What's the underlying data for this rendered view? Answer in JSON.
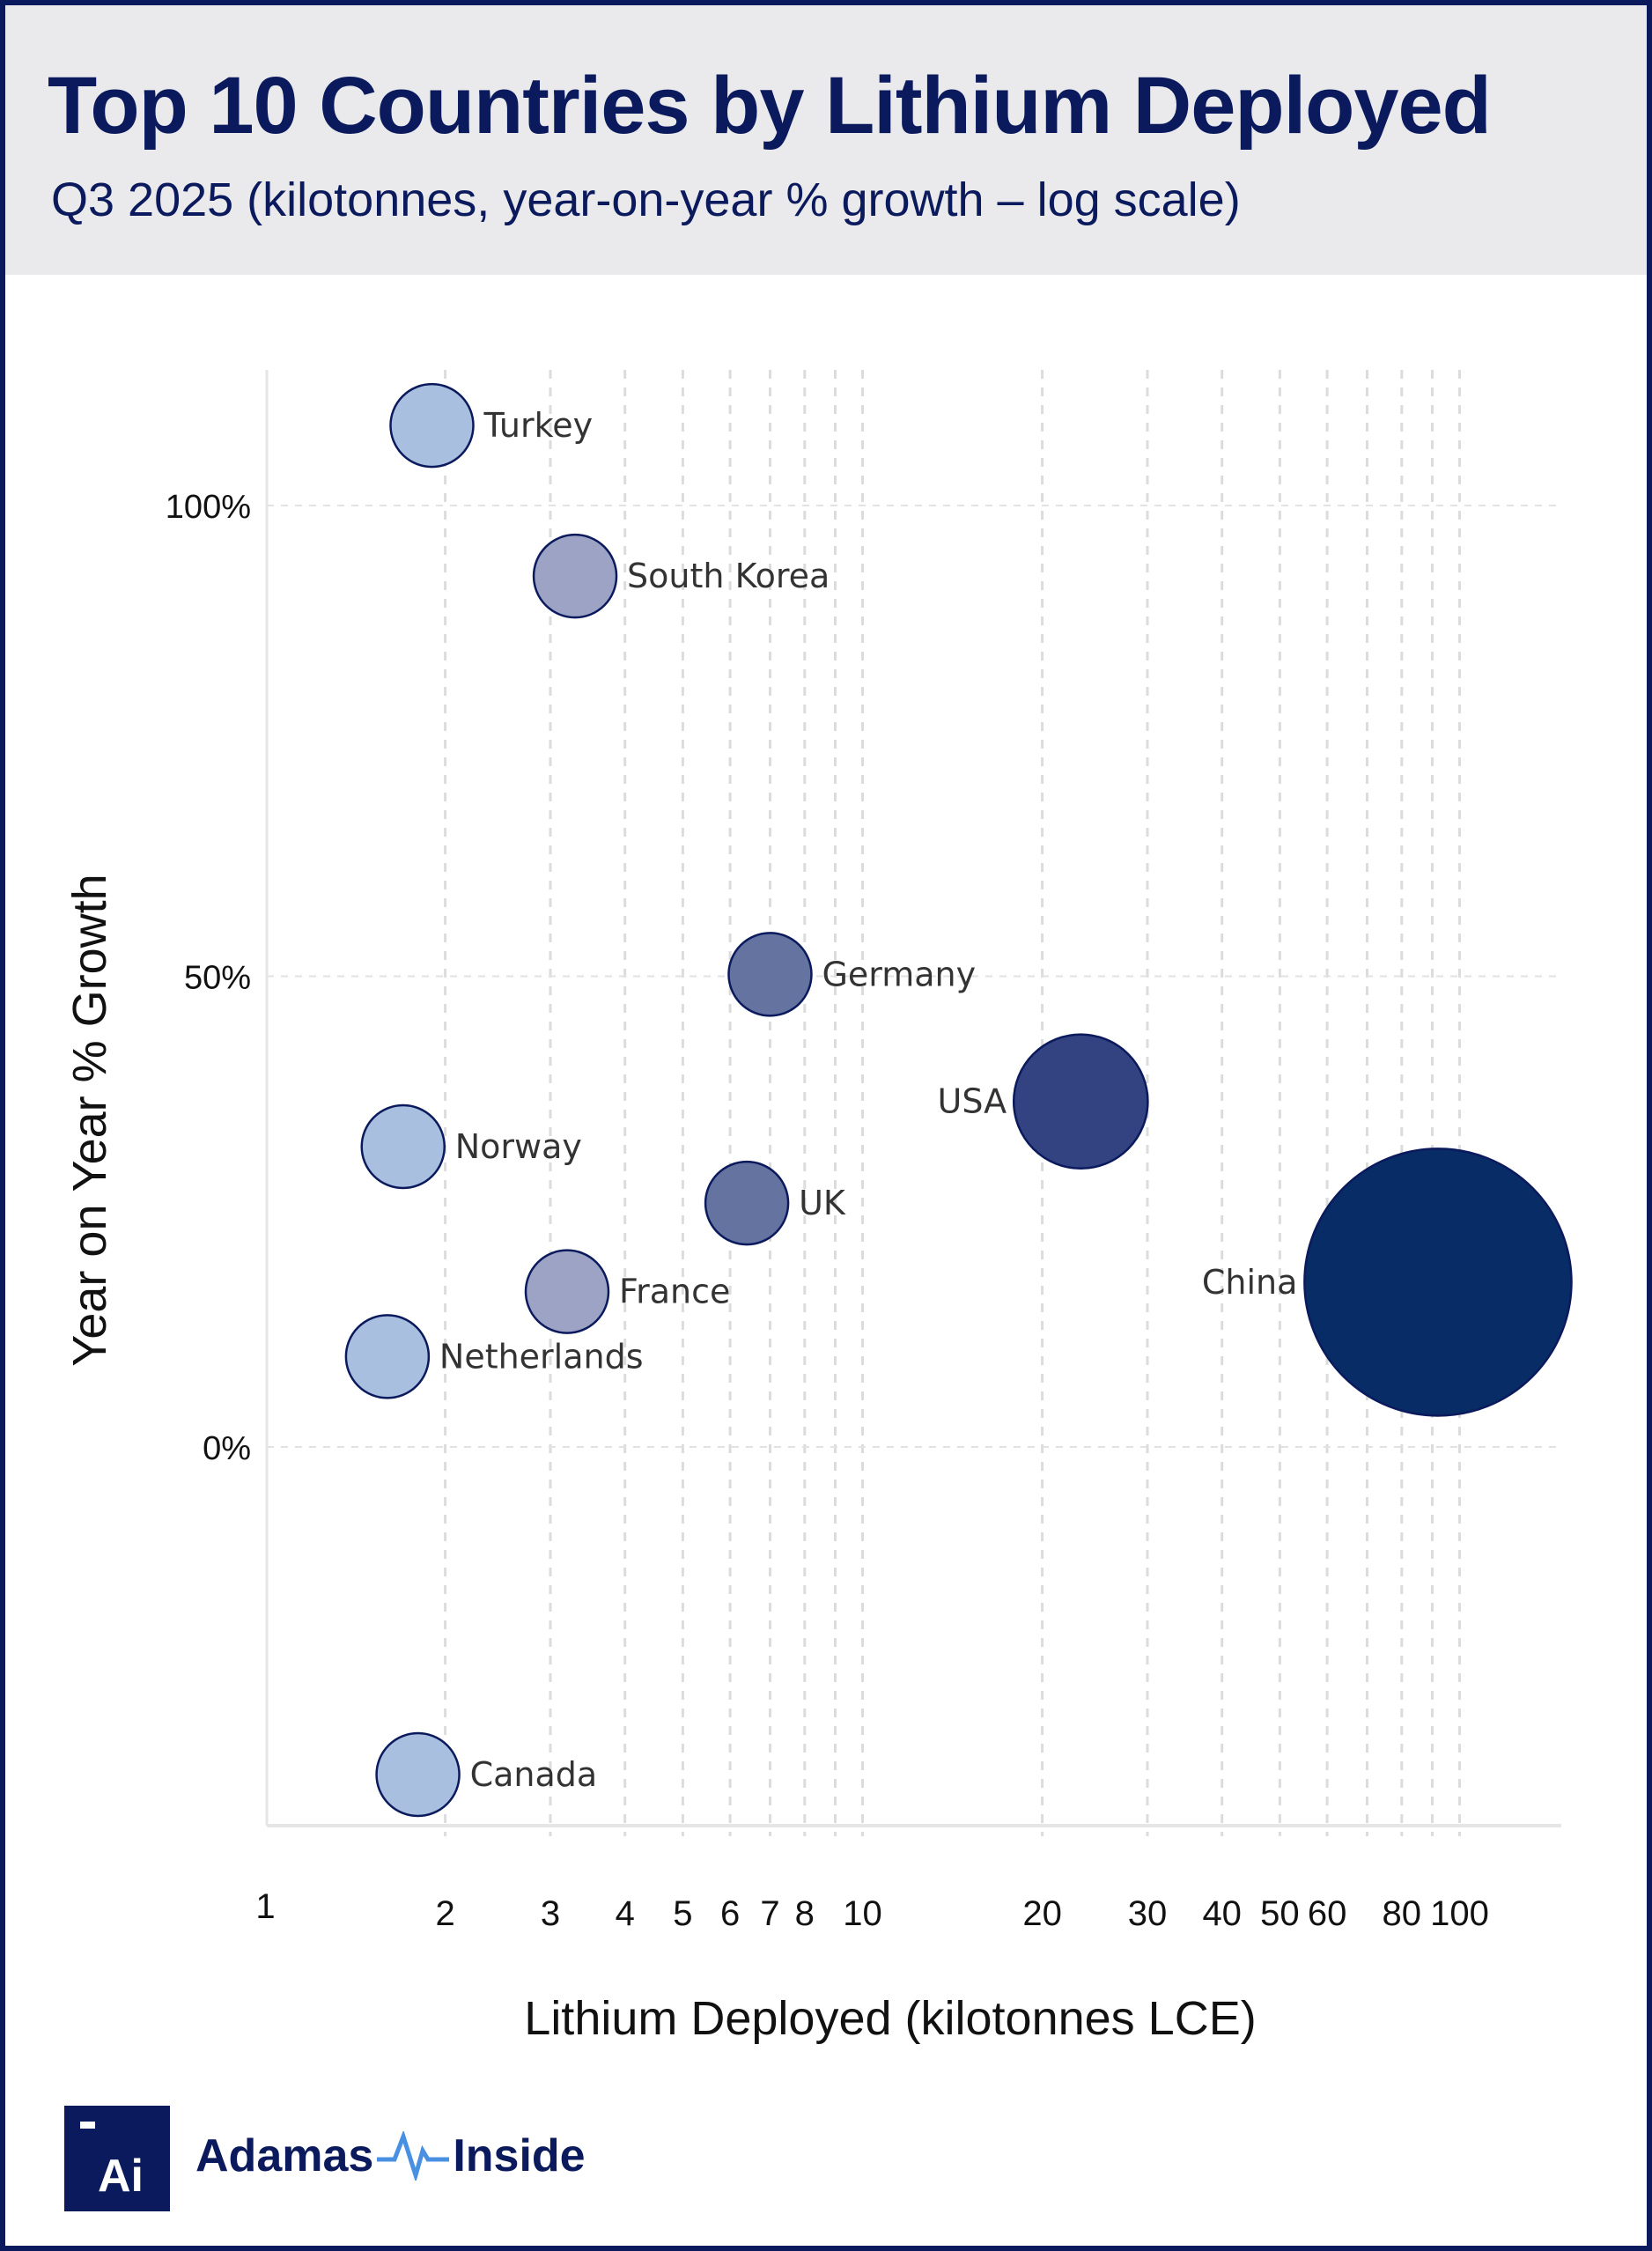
{
  "header": {
    "title": "Top 10 Countries by Lithium Deployed",
    "subtitle": "Q3 2025 (kilotonnes, year-on-year % growth – log scale)"
  },
  "chart_data": {
    "type": "scatter",
    "subtype": "bubble",
    "xlabel": "Lithium Deployed (kilotonnes LCE)",
    "ylabel": "Year on Year % Growth",
    "x_scale": "log",
    "xlim": [
      1,
      148
    ],
    "ylim": [
      -40,
      114
    ],
    "grid": true,
    "x_ticks": [
      "1",
      "2",
      "3",
      "4",
      "5",
      "6",
      "7",
      "8",
      "10",
      "20",
      "30",
      "40",
      "50",
      "60",
      "80",
      "100"
    ],
    "y_ticks": [
      "100%",
      "50%",
      "0%"
    ],
    "points": [
      {
        "name": "Turkey",
        "x": 1.9,
        "y": 108.5,
        "color": "#a8bfdf"
      },
      {
        "name": "South Korea",
        "x": 3.3,
        "y": 92.5,
        "color": "#9ca3c5"
      },
      {
        "name": "Germany",
        "x": 7.0,
        "y": 50.2,
        "color": "#6473a0"
      },
      {
        "name": "USA",
        "x": 23.2,
        "y": 36.7,
        "color": "#334381"
      },
      {
        "name": "Norway",
        "x": 1.7,
        "y": 31.9,
        "color": "#a8bfdf"
      },
      {
        "name": "UK",
        "x": 6.4,
        "y": 25.9,
        "color": "#6473a0"
      },
      {
        "name": "France",
        "x": 3.2,
        "y": 16.5,
        "color": "#9ca3c5"
      },
      {
        "name": "China",
        "x": 92,
        "y": 17.5,
        "color": "#072c66"
      },
      {
        "name": "Netherlands",
        "x": 1.6,
        "y": 9.6,
        "color": "#a8bfdf"
      },
      {
        "name": "Canada",
        "x": 1.8,
        "y": -34.8,
        "color": "#a8bfdf"
      }
    ]
  },
  "logo": {
    "mark": "Ai",
    "brand_left": "Adamas",
    "brand_right": "Inside",
    "brand_color": "#0b1a5c",
    "pulse_color": "#4a90e2"
  }
}
